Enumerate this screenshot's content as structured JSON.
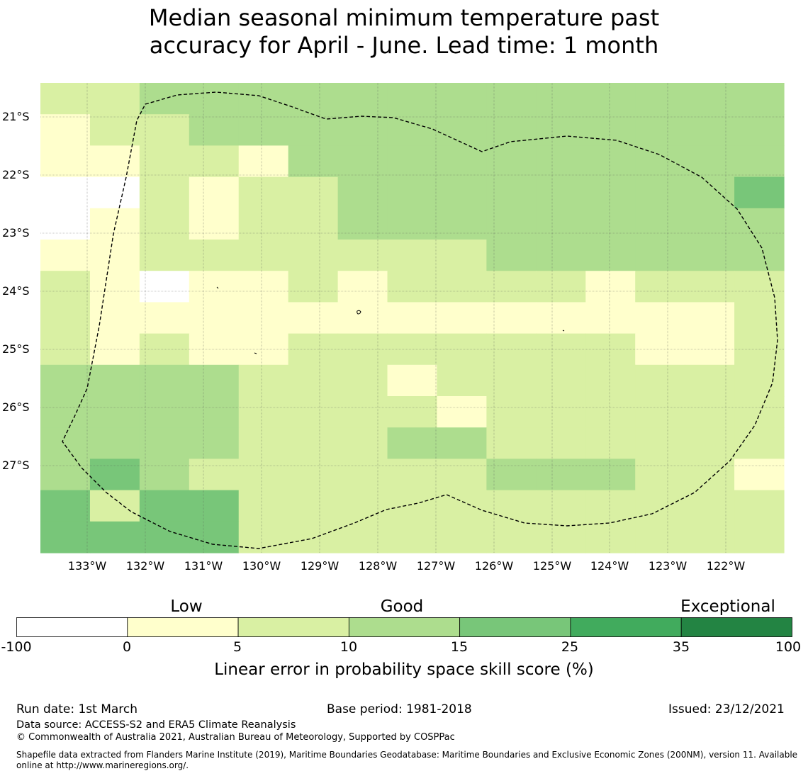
{
  "title_line1": "Median seasonal minimum temperature past",
  "title_line2": "accuracy for April - June. Lead time: 1 month",
  "map": {
    "lat_labels": [
      "21°S",
      "22°S",
      "23°S",
      "24°S",
      "25°S",
      "26°S",
      "27°S"
    ],
    "lon_labels": [
      "133°W",
      "132°W",
      "131°W",
      "130°W",
      "129°W",
      "128°W",
      "127°W",
      "126°W",
      "125°W",
      "124°W",
      "123°W",
      "122°W"
    ],
    "grid_bins": [
      [
        2,
        2,
        3,
        3,
        3,
        3,
        3,
        3,
        3,
        3,
        3,
        3,
        3,
        3,
        3
      ],
      [
        1,
        2,
        2,
        3,
        3,
        3,
        3,
        3,
        3,
        3,
        3,
        3,
        3,
        3,
        3
      ],
      [
        1,
        1,
        2,
        2,
        1,
        3,
        3,
        3,
        3,
        3,
        3,
        3,
        3,
        3,
        3
      ],
      [
        0,
        0,
        2,
        1,
        2,
        2,
        3,
        3,
        3,
        3,
        3,
        3,
        3,
        3,
        4
      ],
      [
        0,
        1,
        2,
        1,
        2,
        2,
        3,
        3,
        3,
        3,
        3,
        3,
        3,
        3,
        3
      ],
      [
        1,
        1,
        2,
        2,
        2,
        2,
        2,
        2,
        2,
        3,
        3,
        3,
        3,
        3,
        3
      ],
      [
        2,
        1,
        0,
        1,
        1,
        2,
        1,
        2,
        2,
        2,
        2,
        1,
        2,
        2,
        2
      ],
      [
        2,
        1,
        1,
        1,
        1,
        1,
        1,
        1,
        1,
        1,
        1,
        1,
        1,
        1,
        2
      ],
      [
        2,
        1,
        2,
        1,
        1,
        2,
        2,
        2,
        2,
        2,
        2,
        2,
        1,
        1,
        2
      ],
      [
        3,
        3,
        3,
        3,
        2,
        2,
        2,
        1,
        2,
        2,
        2,
        2,
        2,
        2,
        2
      ],
      [
        3,
        3,
        3,
        3,
        2,
        2,
        2,
        2,
        1,
        2,
        2,
        2,
        2,
        2,
        2
      ],
      [
        3,
        3,
        3,
        3,
        2,
        2,
        2,
        3,
        3,
        2,
        2,
        2,
        2,
        2,
        2
      ],
      [
        3,
        4,
        3,
        2,
        2,
        2,
        2,
        2,
        2,
        3,
        3,
        3,
        2,
        2,
        1
      ],
      [
        4,
        2,
        4,
        4,
        2,
        2,
        2,
        2,
        2,
        2,
        2,
        2,
        2,
        2,
        2
      ],
      [
        4,
        4,
        4,
        4,
        2,
        2,
        2,
        2,
        2,
        2,
        2,
        2,
        2,
        2,
        2
      ]
    ]
  },
  "colorbar": {
    "headings": [
      "Low",
      "Good",
      "Exceptional"
    ],
    "ticks": [
      "-100",
      "0",
      "5",
      "10",
      "15",
      "25",
      "35",
      "100"
    ],
    "colors": [
      "#ffffff",
      "#ffffcc",
      "#d9f0a3",
      "#addd8e",
      "#78c679",
      "#41ab5d",
      "#238443"
    ],
    "label": "Linear error in probability space skill score (%)"
  },
  "footer": {
    "run_date": "Run date: 1st March",
    "base_period": "Base period: 1981-2018",
    "issued": "Issued: 23/12/2021",
    "data_source": "Data source: ACCESS-S2 and ERA5 Climate Reanalysis",
    "copyright": "© Commonwealth of Australia 2021, Australian Bureau of Meteorology, Supported by COSPPac",
    "shapefile_line1": "Shapefile data extracted from Flanders Marine Institute (2019), Maritime Boundaries Geodatabase: Maritime Boundaries and Exclusive Economic Zones (200NM), version 11. Available",
    "shapefile_line2": "online at http://www.marineregions.org/."
  }
}
